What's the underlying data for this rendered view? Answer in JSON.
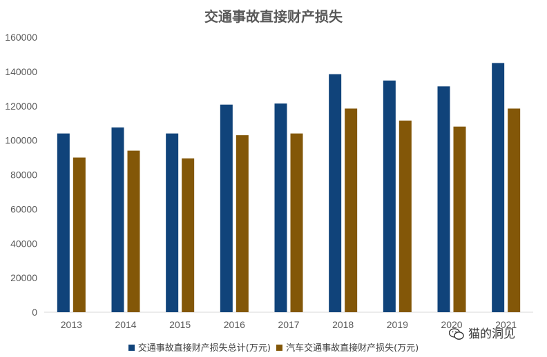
{
  "chart_data": {
    "type": "bar",
    "title": "交通事故直接财产损失",
    "categories": [
      "2013",
      "2014",
      "2015",
      "2016",
      "2017",
      "2018",
      "2019",
      "2020",
      "2021"
    ],
    "series": [
      {
        "name": "交通事故直接财产损失总计(万元)",
        "color": "#10437a",
        "values": [
          104000,
          107500,
          104000,
          120800,
          121400,
          138500,
          134800,
          131400,
          145000
        ]
      },
      {
        "name": "汽车交通事故直接财产损失(万元)",
        "color": "#835708",
        "values": [
          90000,
          94000,
          89500,
          103000,
          104000,
          118500,
          111500,
          108000,
          118500
        ]
      }
    ],
    "ylim": [
      0,
      160000
    ],
    "yticks": [
      "0",
      "20000",
      "40000",
      "60000",
      "80000",
      "100000",
      "120000",
      "140000",
      "160000"
    ],
    "grid": false,
    "legend_position": "bottom"
  },
  "watermark": {
    "text": "猫的洞见",
    "icon": "wechat-icon"
  }
}
